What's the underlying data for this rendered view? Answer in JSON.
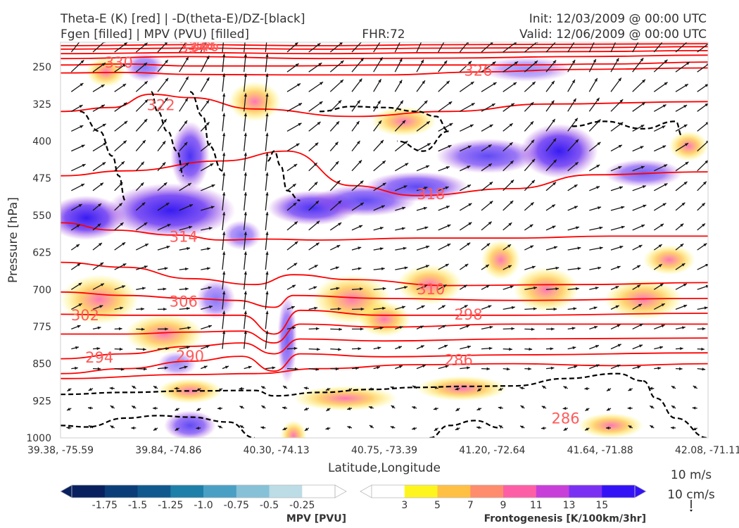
{
  "header": {
    "title_left_line1": "Theta-E (K) [red] | -D(theta-E)/DZ-[black]",
    "title_left_line2": "Fgen [filled] | MPV (PVU) [filled]",
    "title_center": "FHR:72",
    "title_right_line1": "Init: 12/03/2009 @ 00:00 UTC",
    "title_right_line2": "Valid: 12/06/2009 @ 00:00 UTC"
  },
  "chart_data": {
    "type": "contour",
    "xlabel": "Latitude,Longitude",
    "ylabel": "Pressure [hPa]",
    "x_range": [
      0,
      1
    ],
    "pressure_range": [
      1000,
      200
    ],
    "y_scale": "linear-inverted",
    "x_ticks": [
      {
        "label": "39.38, -75.59",
        "frac": 0.0
      },
      {
        "label": "39.84, -74.86",
        "frac": 0.1667
      },
      {
        "label": "40.30, -74.13",
        "frac": 0.3333
      },
      {
        "label": "40.75, -73.39",
        "frac": 0.5
      },
      {
        "label": "41.20, -72.64",
        "frac": 0.6667
      },
      {
        "label": "41.64, -71.88",
        "frac": 0.8333
      },
      {
        "label": "42.08, -71.11",
        "frac": 1.0
      }
    ],
    "y_ticks": [
      250,
      325,
      400,
      475,
      550,
      625,
      700,
      775,
      850,
      925,
      1000
    ],
    "colors": {
      "theta_e": "#ff0000",
      "theta_e_label": "#ff5a5a",
      "ddz": "#000000",
      "mpv_contour": "#9fb3cc",
      "wind": "#151515"
    },
    "theta_e_labels": [
      {
        "text": "330",
        "x": 0.09,
        "p": 243
      },
      {
        "text": "334",
        "x": 0.205,
        "p": 212
      },
      {
        "text": "338",
        "x": 0.218,
        "p": 207
      },
      {
        "text": "346",
        "x": 0.223,
        "p": 209
      },
      {
        "text": "322",
        "x": 0.155,
        "p": 329
      },
      {
        "text": "326",
        "x": 0.645,
        "p": 259
      },
      {
        "text": "318",
        "x": 0.572,
        "p": 509
      },
      {
        "text": "314",
        "x": 0.19,
        "p": 595
      },
      {
        "text": "310",
        "x": 0.572,
        "p": 701
      },
      {
        "text": "306",
        "x": 0.19,
        "p": 726
      },
      {
        "text": "302",
        "x": 0.038,
        "p": 754
      },
      {
        "text": "298",
        "x": 0.63,
        "p": 752
      },
      {
        "text": "294",
        "x": 0.06,
        "p": 839
      },
      {
        "text": "290",
        "x": 0.2,
        "p": 836
      },
      {
        "text": "286",
        "x": 0.615,
        "p": 844
      },
      {
        "text": "286",
        "x": 0.78,
        "p": 962
      }
    ],
    "theta_e_lines": [
      {
        "k": 346,
        "x": [
          0,
          0.2,
          0.4,
          0.6,
          0.8,
          1.0
        ],
        "p": [
          207,
          205,
          207,
          205,
          204,
          203
        ]
      },
      {
        "k": 342,
        "x": [
          0,
          0.2,
          0.4,
          0.6,
          0.8,
          1.0
        ],
        "p": [
          214,
          212,
          214,
          212,
          211,
          209
        ]
      },
      {
        "k": 338,
        "x": [
          0,
          0.2,
          0.4,
          0.6,
          0.8,
          1.0
        ],
        "p": [
          223,
          221,
          223,
          221,
          219,
          217
        ]
      },
      {
        "k": 334,
        "x": [
          0,
          0.2,
          0.4,
          0.6,
          0.8,
          1.0
        ],
        "p": [
          233,
          229,
          233,
          232,
          229,
          226
        ]
      },
      {
        "k": 330,
        "x": [
          0,
          0.1,
          0.2,
          0.35,
          0.5,
          0.7,
          0.85,
          1.0
        ],
        "p": [
          246,
          244,
          248,
          248,
          246,
          246,
          244,
          240
        ]
      },
      {
        "k": 326,
        "x": [
          0,
          0.1,
          0.2,
          0.35,
          0.5,
          0.65,
          0.8,
          1.0
        ],
        "p": [
          262,
          261,
          265,
          266,
          266,
          260,
          255,
          252
        ]
      },
      {
        "k": 322,
        "x": [
          0,
          0.08,
          0.14,
          0.2,
          0.3,
          0.45,
          0.6,
          0.75,
          1.0
        ],
        "p": [
          340,
          332,
          305,
          312,
          335,
          350,
          340,
          325,
          320
        ]
      },
      {
        "k": 318,
        "x": [
          0,
          0.1,
          0.25,
          0.35,
          0.45,
          0.55,
          0.7,
          0.82,
          1.0
        ],
        "p": [
          470,
          460,
          440,
          420,
          490,
          510,
          496,
          468,
          462
        ]
      },
      {
        "k": 314,
        "x": [
          0,
          0.08,
          0.18,
          0.25,
          0.32,
          0.4,
          0.55,
          0.7,
          0.85,
          1.0
        ],
        "p": [
          565,
          580,
          590,
          600,
          598,
          600,
          596,
          596,
          592,
          592
        ]
      },
      {
        "k": 310,
        "x": [
          0,
          0.1,
          0.2,
          0.3,
          0.36,
          0.45,
          0.6,
          0.8,
          1.0
        ],
        "p": [
          645,
          655,
          678,
          690,
          670,
          680,
          692,
          690,
          686
        ]
      },
      {
        "k": 306,
        "x": [
          0,
          0.1,
          0.2,
          0.27,
          0.33,
          0.36,
          0.5,
          0.7,
          1.0
        ],
        "p": [
          705,
          712,
          718,
          722,
          736,
          712,
          718,
          722,
          718
        ]
      },
      {
        "k": 302,
        "x": [
          0,
          0.1,
          0.2,
          0.28,
          0.33,
          0.37,
          0.5,
          0.7,
          1.0
        ],
        "p": [
          750,
          752,
          752,
          752,
          790,
          742,
          752,
          752,
          748
        ]
      },
      {
        "k": 298,
        "x": [
          0,
          0.1,
          0.2,
          0.28,
          0.33,
          0.37,
          0.5,
          0.7,
          1.0
        ],
        "p": [
          790,
          790,
          786,
          784,
          808,
          770,
          776,
          770,
          770
        ]
      },
      {
        "k": 294,
        "x": [
          0,
          0.1,
          0.2,
          0.28,
          0.33,
          0.37,
          0.5,
          0.7,
          1.0
        ],
        "p": [
          840,
          830,
          815,
          808,
          830,
          800,
          804,
          800,
          798
        ]
      },
      {
        "k": 290,
        "x": [
          0,
          0.1,
          0.2,
          0.28,
          0.33,
          0.37,
          0.5,
          0.7,
          1.0
        ],
        "p": [
          870,
          860,
          845,
          835,
          865,
          830,
          836,
          832,
          828
        ]
      },
      {
        "k": 286,
        "x": [
          0,
          0.2,
          0.3,
          0.4,
          0.55,
          0.7,
          0.85,
          1.0
        ],
        "p": [
          880,
          872,
          870,
          860,
          852,
          850,
          854,
          850
        ]
      }
    ],
    "ddz_lines": [
      {
        "x": [
          0,
          0.1,
          0.2,
          0.3,
          0.33,
          0.4,
          0.48,
          0.55,
          0.62,
          0.7,
          0.78,
          0.86,
          0.9
        ],
        "p": [
          912,
          908,
          905,
          904,
          915,
          908,
          902,
          898,
          896,
          895,
          880,
          870,
          885
        ]
      },
      {
        "x": [
          0.9,
          0.92,
          0.95,
          1.0
        ],
        "p": [
          885,
          920,
          960,
          1000
        ]
      },
      {
        "x": [
          0,
          0.04,
          0.1,
          0.15,
          0.2,
          0.26,
          0.3
        ],
        "p": [
          975,
          978,
          960,
          955,
          958,
          968,
          1000
        ]
      },
      {
        "x": [
          0.57,
          0.6,
          0.64,
          0.68
        ],
        "p": [
          1000,
          975,
          965,
          980
        ]
      },
      {
        "x": [
          0.4,
          0.45,
          0.5,
          0.55,
          0.58,
          0.6,
          0.56,
          0.52
        ],
        "p": [
          340,
          330,
          332,
          340,
          350,
          380,
          420,
          400
        ]
      },
      {
        "x": [
          0.03,
          0.06,
          0.08,
          0.09,
          0.1
        ],
        "p": [
          340,
          380,
          430,
          470,
          520
        ]
      },
      {
        "x": [
          0.14,
          0.15,
          0.165,
          0.18,
          0.19
        ],
        "p": [
          300,
          340,
          380,
          420,
          470
        ]
      },
      {
        "x": [
          0.2,
          0.22,
          0.23,
          0.25
        ],
        "p": [
          300,
          350,
          410,
          460
        ]
      },
      {
        "x": [
          0.32,
          0.33,
          0.34,
          0.35,
          0.37
        ],
        "p": [
          440,
          420,
          450,
          500,
          520
        ]
      },
      {
        "x": [
          0.79,
          0.84,
          0.9,
          0.95,
          0.96
        ],
        "p": [
          370,
          360,
          375,
          360,
          390
        ]
      }
    ],
    "mpv_blobs": [
      {
        "cx": 0.04,
        "p": 555,
        "rx": 0.06,
        "rp": 45,
        "v": 1.0
      },
      {
        "cx": 0.17,
        "p": 540,
        "rx": 0.1,
        "rp": 55,
        "v": 1.2
      },
      {
        "cx": 0.2,
        "p": 430,
        "rx": 0.03,
        "rp": 70,
        "v": 0.9
      },
      {
        "cx": 0.13,
        "p": 250,
        "rx": 0.03,
        "rp": 30,
        "v": 0.6
      },
      {
        "cx": 0.28,
        "p": 590,
        "rx": 0.03,
        "rp": 30,
        "v": 0.6
      },
      {
        "cx": 0.39,
        "p": 535,
        "rx": 0.07,
        "rp": 35,
        "v": 0.9
      },
      {
        "cx": 0.47,
        "p": 520,
        "rx": 0.08,
        "rp": 32,
        "v": 0.8
      },
      {
        "cx": 0.55,
        "p": 492,
        "rx": 0.08,
        "rp": 30,
        "v": 0.8
      },
      {
        "cx": 0.66,
        "p": 430,
        "rx": 0.08,
        "rp": 35,
        "v": 0.8
      },
      {
        "cx": 0.77,
        "p": 420,
        "rx": 0.06,
        "rp": 55,
        "v": 1.2
      },
      {
        "cx": 0.9,
        "p": 465,
        "rx": 0.06,
        "rp": 28,
        "v": 0.7
      },
      {
        "cx": 0.72,
        "p": 255,
        "rx": 0.07,
        "rp": 25,
        "v": 0.5
      },
      {
        "cx": 0.24,
        "p": 720,
        "rx": 0.03,
        "rp": 40,
        "v": 0.6
      },
      {
        "cx": 0.18,
        "p": 850,
        "rx": 0.03,
        "rp": 25,
        "v": 0.5
      },
      {
        "cx": 0.35,
        "p": 800,
        "rx": 0.015,
        "rp": 90,
        "v": 0.7
      },
      {
        "cx": 0.2,
        "p": 975,
        "rx": 0.04,
        "rp": 30,
        "v": 0.8
      }
    ],
    "fgen_blobs": [
      {
        "cx": 0.06,
        "p": 720,
        "rx": 0.06,
        "rp": 50
      },
      {
        "cx": 0.16,
        "p": 790,
        "rx": 0.06,
        "rp": 40
      },
      {
        "cx": 0.45,
        "p": 720,
        "rx": 0.06,
        "rp": 50
      },
      {
        "cx": 0.5,
        "p": 760,
        "rx": 0.04,
        "rp": 35
      },
      {
        "cx": 0.57,
        "p": 690,
        "rx": 0.05,
        "rp": 40
      },
      {
        "cx": 0.68,
        "p": 640,
        "rx": 0.03,
        "rp": 40
      },
      {
        "cx": 0.75,
        "p": 700,
        "rx": 0.05,
        "rp": 45
      },
      {
        "cx": 0.9,
        "p": 720,
        "rx": 0.06,
        "rp": 40
      },
      {
        "cx": 0.94,
        "p": 640,
        "rx": 0.04,
        "rp": 30
      },
      {
        "cx": 0.62,
        "p": 900,
        "rx": 0.07,
        "rp": 25
      },
      {
        "cx": 0.44,
        "p": 920,
        "rx": 0.08,
        "rp": 25
      },
      {
        "cx": 0.85,
        "p": 975,
        "rx": 0.05,
        "rp": 25
      },
      {
        "cx": 0.36,
        "p": 995,
        "rx": 0.02,
        "rp": 30
      },
      {
        "cx": 0.2,
        "p": 905,
        "rx": 0.05,
        "rp": 25
      },
      {
        "cx": 0.53,
        "p": 360,
        "rx": 0.05,
        "rp": 30
      },
      {
        "cx": 0.3,
        "p": 320,
        "rx": 0.04,
        "rp": 40
      },
      {
        "cx": 0.07,
        "p": 260,
        "rx": 0.03,
        "rp": 30
      },
      {
        "cx": 0.97,
        "p": 410,
        "rx": 0.03,
        "rp": 30
      }
    ],
    "mpv_colorbar": {
      "label": "MPV [PVU]",
      "colors": [
        "#08205e",
        "#0b3d78",
        "#10598f",
        "#1e7fa8",
        "#4aa0c4",
        "#86c1d7",
        "#bcdce6",
        "#ffffff"
      ],
      "ticks": [
        "-1.75",
        "-1.5",
        "-1.25",
        "-1.0",
        "-0.75",
        "-0.5",
        "-0.25"
      ]
    },
    "fgen_colorbar": {
      "label": "Frontogenesis [K/100km/3hr]",
      "colors": [
        "#ffffff",
        "#fff51e",
        "#ffc044",
        "#ff8c6c",
        "#fd5fa6",
        "#c73fd8",
        "#7a30f3",
        "#3313f5"
      ],
      "ticks": [
        "3",
        "5",
        "7",
        "9",
        "11",
        "13",
        "15"
      ]
    },
    "wind_key": {
      "line1": "10 m/s",
      "line2": "10 cm/s"
    }
  }
}
